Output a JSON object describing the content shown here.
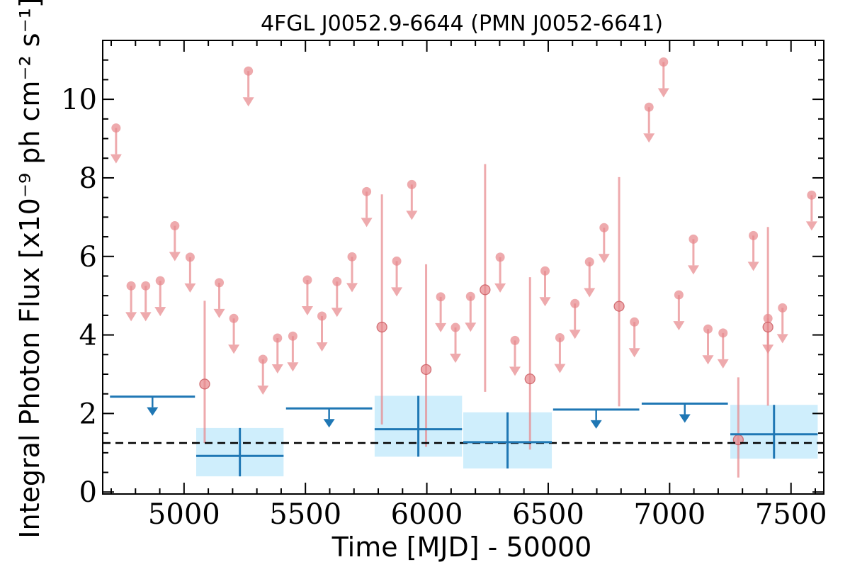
{
  "chart_data": {
    "type": "scatter",
    "title": "4FGL J0052.9-6644 (PMN J0052-6641)",
    "xlabel": "Time [MJD] - 50000",
    "ylabel": "Integral Photon Flux [x10⁻⁹ ph cm⁻² s⁻¹]",
    "xlim": [
      4665,
      7635
    ],
    "ylim": [
      -0.05,
      11.5
    ],
    "xticks": [
      5000,
      5500,
      6000,
      6500,
      7000,
      7500
    ],
    "yticks": [
      0,
      2,
      4,
      6,
      8,
      10
    ],
    "grid": false,
    "legend": "none",
    "reference_line": {
      "y": 1.25,
      "style": "dashed",
      "color": "#000000"
    },
    "colors": {
      "short_bins": "#e8898d",
      "long_bins": "#1f77b4",
      "long_bins_band": "#cfeefc"
    },
    "series": [
      {
        "marker": "circle",
        "color": "#e8898d",
        "upper_limits": [
          {
            "x": 4720,
            "y": 9.27
          },
          {
            "x": 4782,
            "y": 5.25
          },
          {
            "x": 4842,
            "y": 5.25
          },
          {
            "x": 4902,
            "y": 5.38
          },
          {
            "x": 4962,
            "y": 6.78
          },
          {
            "x": 5025,
            "y": 5.98
          },
          {
            "x": 5145,
            "y": 5.33
          },
          {
            "x": 5205,
            "y": 4.42
          },
          {
            "x": 5265,
            "y": 10.72
          },
          {
            "x": 5325,
            "y": 3.38
          },
          {
            "x": 5385,
            "y": 3.92
          },
          {
            "x": 5448,
            "y": 3.97
          },
          {
            "x": 5508,
            "y": 5.4
          },
          {
            "x": 5568,
            "y": 4.48
          },
          {
            "x": 5630,
            "y": 5.36
          },
          {
            "x": 5692,
            "y": 5.99
          },
          {
            "x": 5752,
            "y": 7.65
          },
          {
            "x": 5876,
            "y": 5.88
          },
          {
            "x": 5938,
            "y": 7.83
          },
          {
            "x": 6057,
            "y": 4.97
          },
          {
            "x": 6118,
            "y": 4.19
          },
          {
            "x": 6180,
            "y": 4.98
          },
          {
            "x": 6302,
            "y": 5.98
          },
          {
            "x": 6363,
            "y": 3.86
          },
          {
            "x": 6487,
            "y": 5.63
          },
          {
            "x": 6548,
            "y": 3.93
          },
          {
            "x": 6610,
            "y": 4.8
          },
          {
            "x": 6670,
            "y": 5.86
          },
          {
            "x": 6730,
            "y": 6.73
          },
          {
            "x": 6855,
            "y": 4.33
          },
          {
            "x": 6915,
            "y": 9.8
          },
          {
            "x": 6975,
            "y": 10.95
          },
          {
            "x": 7038,
            "y": 5.02
          },
          {
            "x": 7098,
            "y": 6.44
          },
          {
            "x": 7158,
            "y": 4.15
          },
          {
            "x": 7220,
            "y": 4.05
          },
          {
            "x": 7345,
            "y": 6.53
          },
          {
            "x": 7405,
            "y": 4.42
          },
          {
            "x": 7465,
            "y": 4.69
          },
          {
            "x": 7585,
            "y": 7.56
          }
        ],
        "detections": [
          {
            "x": 5085,
            "y": 2.75,
            "ylo": 1.25,
            "yhi": 4.87
          },
          {
            "x": 5815,
            "y": 4.2,
            "ylo": 1.72,
            "yhi": 7.58
          },
          {
            "x": 5997,
            "y": 3.12,
            "ylo": 1.15,
            "yhi": 5.8
          },
          {
            "x": 6240,
            "y": 5.15,
            "ylo": 2.55,
            "yhi": 8.35
          },
          {
            "x": 6425,
            "y": 2.88,
            "ylo": 1.08,
            "yhi": 5.47
          },
          {
            "x": 6792,
            "y": 4.73,
            "ylo": 2.18,
            "yhi": 8.02
          },
          {
            "x": 7283,
            "y": 1.33,
            "ylo": 0.37,
            "yhi": 2.92
          },
          {
            "x": 7405,
            "y": 4.2,
            "ylo": 2.2,
            "yhi": 6.75
          }
        ]
      },
      {
        "marker": "line",
        "color": "#1f77b4",
        "upper_limits": [
          {
            "x1": 4695,
            "x2": 5045,
            "y": 2.43
          },
          {
            "x1": 5420,
            "x2": 5775,
            "y": 2.13
          },
          {
            "x1": 6520,
            "x2": 6875,
            "y": 2.1
          },
          {
            "x1": 6885,
            "x2": 7240,
            "y": 2.25
          }
        ],
        "detections": [
          {
            "x1": 5050,
            "x2": 5410,
            "y": 0.92,
            "ylo": 0.4,
            "yhi": 1.63
          },
          {
            "x1": 5785,
            "x2": 6145,
            "y": 1.6,
            "ylo": 0.9,
            "yhi": 2.45
          },
          {
            "x1": 6150,
            "x2": 6515,
            "y": 1.27,
            "ylo": 0.6,
            "yhi": 2.03
          },
          {
            "x1": 7250,
            "x2": 7610,
            "y": 1.47,
            "ylo": 0.85,
            "yhi": 2.22
          }
        ]
      }
    ]
  }
}
